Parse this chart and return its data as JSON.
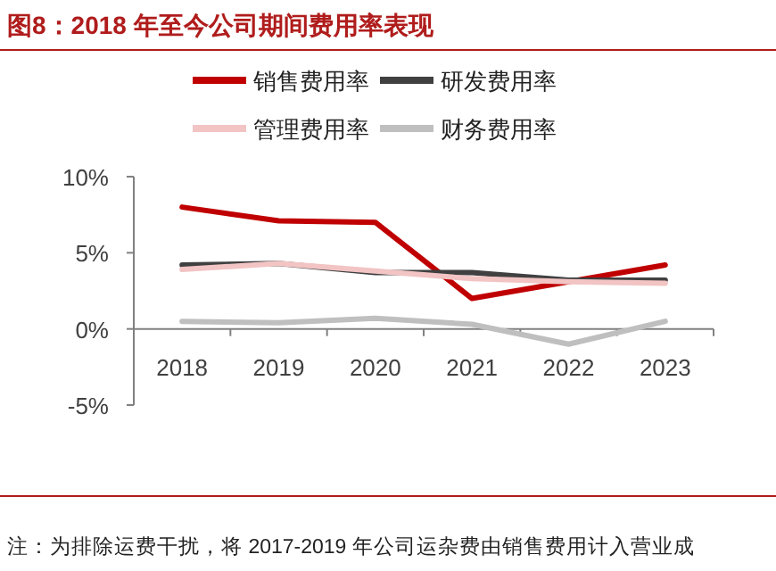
{
  "chart_data": {
    "type": "line",
    "title": "图8：2018 年至今公司期间费用率表现",
    "categories": [
      "2018",
      "2019",
      "2020",
      "2021",
      "2022",
      "2023"
    ],
    "series": [
      {
        "name": "销售费用率",
        "color": "#c00000",
        "values": [
          8.0,
          7.1,
          7.0,
          2.0,
          3.1,
          4.2
        ]
      },
      {
        "name": "研发费用率",
        "color": "#404040",
        "values": [
          4.2,
          4.3,
          3.7,
          3.7,
          3.2,
          3.2
        ]
      },
      {
        "name": "管理费用率",
        "color": "#f2c4c4",
        "values": [
          3.9,
          4.3,
          3.8,
          3.3,
          3.1,
          3.0
        ]
      },
      {
        "name": "财务费用率",
        "color": "#bfbfbf",
        "values": [
          0.5,
          0.4,
          0.7,
          0.3,
          -1.0,
          0.5
        ]
      }
    ],
    "ylim": [
      -5,
      10
    ],
    "yticks": [
      {
        "value": -5,
        "label": "-5%"
      },
      {
        "value": 0,
        "label": "0%"
      },
      {
        "value": 5,
        "label": "5%"
      },
      {
        "value": 10,
        "label": "10%"
      }
    ],
    "grid": false,
    "legend": "top",
    "marker": "none",
    "line_style": "solid",
    "annotations": [
      "注：为排除运费干扰，将 2017-2019 年公司运杂费由销售费用计入营业成"
    ]
  }
}
